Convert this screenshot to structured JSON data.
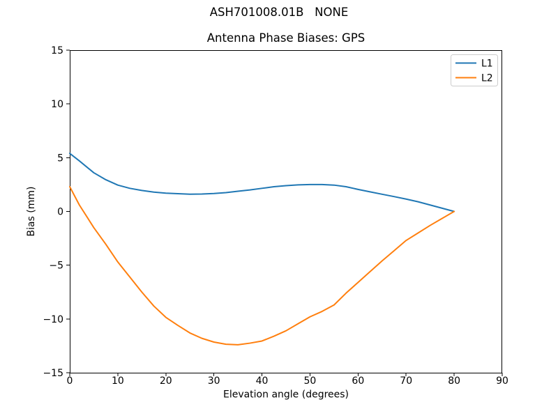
{
  "figure": {
    "suptitle": "ASH701008.01B   NONE"
  },
  "chart_data": {
    "type": "line",
    "title": "Antenna Phase Biases: GPS",
    "xlabel": "Elevation angle (degrees)",
    "ylabel": "Bias (mm)",
    "xlim": [
      0,
      90
    ],
    "ylim": [
      -15,
      15
    ],
    "xticks": [
      0,
      10,
      20,
      30,
      40,
      50,
      60,
      70,
      80,
      90
    ],
    "xtick_labels": [
      "0",
      "10",
      "20",
      "30",
      "40",
      "50",
      "60",
      "70",
      "80",
      "90"
    ],
    "yticks": [
      -15,
      -10,
      -5,
      0,
      5,
      10,
      15
    ],
    "ytick_labels": [
      "−15",
      "−10",
      "−5",
      "0",
      "5",
      "10",
      "15"
    ],
    "grid": false,
    "legend": {
      "position": "upper right",
      "entries": [
        "L1",
        "L2"
      ]
    },
    "x": [
      0,
      2,
      5,
      7.5,
      10,
      12.5,
      15,
      17.5,
      20,
      22.5,
      25,
      27.5,
      30,
      32.5,
      35,
      37.5,
      40,
      42.5,
      45,
      47.5,
      50,
      52.5,
      55,
      57.5,
      60,
      62.5,
      65,
      67.5,
      70,
      72.5,
      75,
      77.5,
      80
    ],
    "series": [
      {
        "name": "L1",
        "color": "#1f77b4",
        "values": [
          5.4,
          4.7,
          3.6,
          2.95,
          2.45,
          2.15,
          1.95,
          1.8,
          1.7,
          1.65,
          1.6,
          1.62,
          1.67,
          1.75,
          1.88,
          2.0,
          2.15,
          2.3,
          2.4,
          2.47,
          2.5,
          2.5,
          2.45,
          2.3,
          2.05,
          1.82,
          1.6,
          1.38,
          1.15,
          0.9,
          0.6,
          0.3,
          0.0
        ]
      },
      {
        "name": "L2",
        "color": "#ff7f0e",
        "values": [
          2.3,
          0.6,
          -1.5,
          -3.05,
          -4.7,
          -6.1,
          -7.5,
          -8.8,
          -9.85,
          -10.6,
          -11.3,
          -11.8,
          -12.15,
          -12.35,
          -12.4,
          -12.25,
          -12.05,
          -11.6,
          -11.1,
          -10.45,
          -9.8,
          -9.3,
          -8.7,
          -7.6,
          -6.6,
          -5.6,
          -4.6,
          -3.65,
          -2.7,
          -2.0,
          -1.3,
          -0.65,
          0.0
        ]
      }
    ]
  }
}
